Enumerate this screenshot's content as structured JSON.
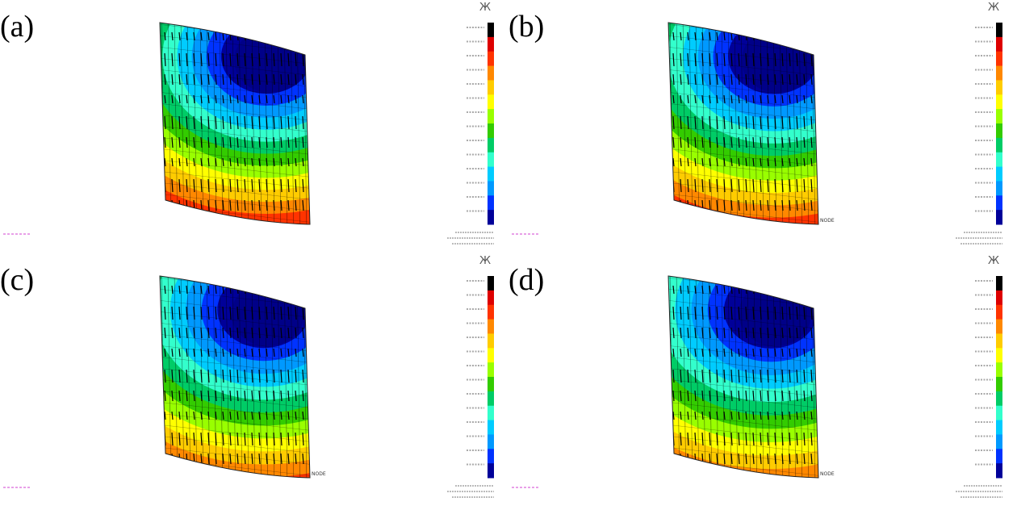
{
  "figure": {
    "panels": [
      {
        "label": "(a)",
        "triad_label": "Ж",
        "node_label": ""
      },
      {
        "label": "(b)",
        "triad_label": "Ж",
        "node_label": "NODE"
      },
      {
        "label": "(c)",
        "triad_label": "Ж",
        "node_label": "NODE"
      },
      {
        "label": "(d)",
        "triad_label": "Ж",
        "node_label": "NODE"
      }
    ],
    "colors": {
      "scale": [
        "#000099",
        "#0033ff",
        "#0099ff",
        "#00ccff",
        "#33ffcc",
        "#00cc66",
        "#33cc00",
        "#99ff00",
        "#ffff00",
        "#ffcc00",
        "#ff8800",
        "#ff3300",
        "#dd0000",
        "#000000"
      ]
    }
  }
}
